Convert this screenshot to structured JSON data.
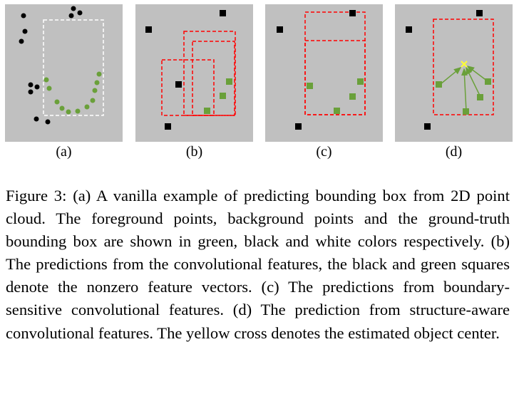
{
  "figure": {
    "panels": [
      {
        "id": "a",
        "label": "(a)"
      },
      {
        "id": "b",
        "label": "(b)"
      },
      {
        "id": "c",
        "label": "(c)"
      },
      {
        "id": "d",
        "label": "(d)"
      }
    ],
    "colors": {
      "panel_background": "#c0c0c0",
      "background_points": "#000000",
      "foreground_points": "#6aa03a",
      "ground_truth_box": "#ffffff",
      "prediction_box": "#ff0000",
      "center_cross": "#ffff33"
    },
    "caption": "Figure 3: (a) A vanilla example of predicting bounding box from 2D point cloud. The foreground points, background points and the ground-truth bounding box are shown in green, black and white colors respectively.  (b) The predictions from the convolutional features, the black and green squares denote the nonzero feature vectors.  (c) The predictions from boundary-sensitive convolutional features.  (d) The prediction from structure-aware convolutional features.  The yellow cross denotes the estimated object center."
  }
}
